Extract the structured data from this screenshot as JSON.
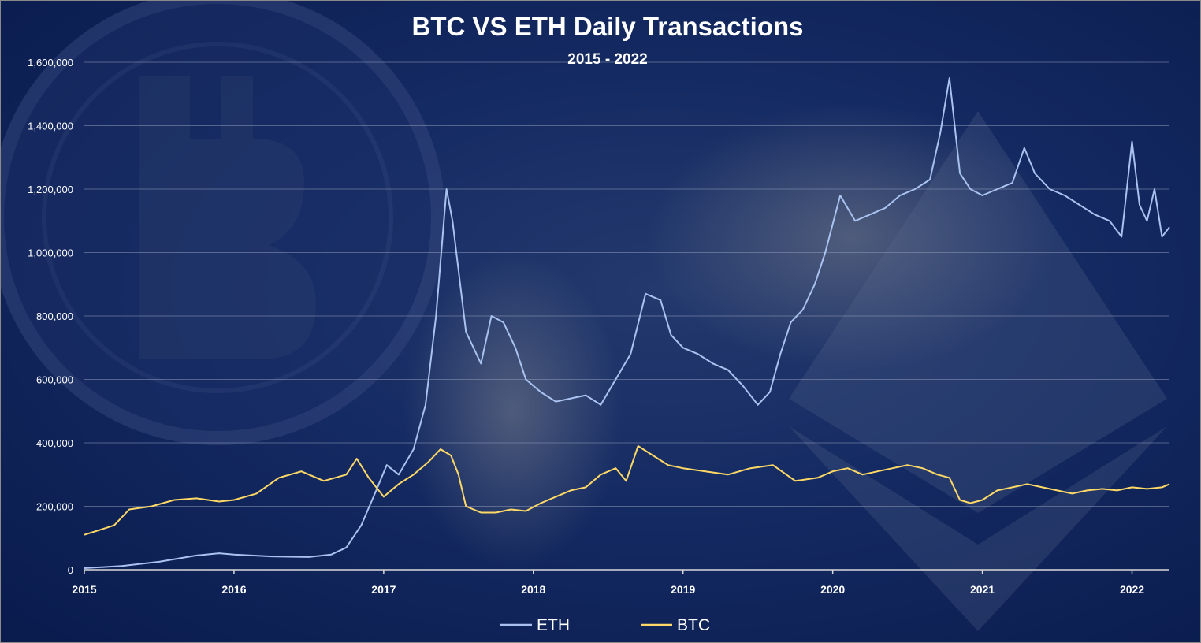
{
  "chart_data": {
    "type": "line",
    "title": "BTC VS ETH Daily Transactions",
    "subtitle": "2015 - 2022",
    "xlabel": "",
    "ylabel": "",
    "x_ticks": [
      "2015",
      "2016",
      "2017",
      "2018",
      "2019",
      "2020",
      "2021",
      "2022"
    ],
    "y_ticks": [
      "0",
      "200,000",
      "400,000",
      "600,000",
      "800,000",
      "1,000,000",
      "1,200,000",
      "1,400,000",
      "1,600,000"
    ],
    "xlim": [
      2015.0,
      2022.25
    ],
    "ylim": [
      0,
      1600000
    ],
    "grid": true,
    "legend": "bottom",
    "series": [
      {
        "name": "ETH",
        "color": "#a9c2ef",
        "x": [
          2015.0,
          2015.25,
          2015.5,
          2015.75,
          2015.9,
          2016.0,
          2016.25,
          2016.5,
          2016.65,
          2016.75,
          2016.85,
          2016.95,
          2017.02,
          2017.1,
          2017.2,
          2017.28,
          2017.35,
          2017.42,
          2017.46,
          2017.55,
          2017.65,
          2017.72,
          2017.8,
          2017.88,
          2017.95,
          2018.05,
          2018.15,
          2018.25,
          2018.35,
          2018.45,
          2018.55,
          2018.65,
          2018.75,
          2018.85,
          2018.92,
          2019.0,
          2019.1,
          2019.2,
          2019.3,
          2019.4,
          2019.5,
          2019.58,
          2019.65,
          2019.72,
          2019.8,
          2019.88,
          2019.95,
          2020.05,
          2020.15,
          2020.25,
          2020.35,
          2020.45,
          2020.55,
          2020.65,
          2020.72,
          2020.78,
          2020.85,
          2020.92,
          2021.0,
          2021.1,
          2021.2,
          2021.28,
          2021.35,
          2021.45,
          2021.55,
          2021.65,
          2021.75,
          2021.85,
          2021.93,
          2022.0,
          2022.05,
          2022.1,
          2022.15,
          2022.2,
          2022.25
        ],
        "y": [
          5000,
          12000,
          25000,
          45000,
          52000,
          48000,
          42000,
          40000,
          48000,
          70000,
          140000,
          250000,
          330000,
          300000,
          380000,
          520000,
          800000,
          1200000,
          1100000,
          750000,
          650000,
          800000,
          780000,
          700000,
          600000,
          560000,
          530000,
          540000,
          550000,
          520000,
          600000,
          680000,
          870000,
          850000,
          740000,
          700000,
          680000,
          650000,
          630000,
          580000,
          520000,
          560000,
          680000,
          780000,
          820000,
          900000,
          1000000,
          1180000,
          1100000,
          1120000,
          1140000,
          1180000,
          1200000,
          1230000,
          1380000,
          1550000,
          1250000,
          1200000,
          1180000,
          1200000,
          1220000,
          1330000,
          1250000,
          1200000,
          1180000,
          1150000,
          1120000,
          1100000,
          1050000,
          1350000,
          1150000,
          1100000,
          1200000,
          1050000,
          1080000
        ]
      },
      {
        "name": "BTC",
        "color": "#ffd966",
        "x": [
          2015.0,
          2015.1,
          2015.2,
          2015.3,
          2015.45,
          2015.6,
          2015.75,
          2015.9,
          2016.0,
          2016.15,
          2016.3,
          2016.45,
          2016.6,
          2016.75,
          2016.82,
          2016.9,
          2017.0,
          2017.1,
          2017.2,
          2017.3,
          2017.38,
          2017.45,
          2017.5,
          2017.55,
          2017.65,
          2017.75,
          2017.85,
          2017.95,
          2018.05,
          2018.15,
          2018.25,
          2018.35,
          2018.45,
          2018.55,
          2018.62,
          2018.7,
          2018.8,
          2018.9,
          2019.0,
          2019.15,
          2019.3,
          2019.45,
          2019.6,
          2019.75,
          2019.9,
          2020.0,
          2020.1,
          2020.2,
          2020.3,
          2020.4,
          2020.5,
          2020.6,
          2020.7,
          2020.78,
          2020.85,
          2020.92,
          2021.0,
          2021.1,
          2021.2,
          2021.3,
          2021.4,
          2021.5,
          2021.6,
          2021.7,
          2021.8,
          2021.9,
          2022.0,
          2022.1,
          2022.2,
          2022.25
        ],
        "y": [
          110000,
          125000,
          140000,
          190000,
          200000,
          220000,
          225000,
          215000,
          220000,
          240000,
          290000,
          310000,
          280000,
          300000,
          350000,
          290000,
          230000,
          270000,
          300000,
          340000,
          380000,
          360000,
          300000,
          200000,
          180000,
          180000,
          190000,
          185000,
          210000,
          230000,
          250000,
          260000,
          300000,
          320000,
          280000,
          390000,
          360000,
          330000,
          320000,
          310000,
          300000,
          320000,
          330000,
          280000,
          290000,
          310000,
          320000,
          300000,
          310000,
          320000,
          330000,
          320000,
          300000,
          290000,
          220000,
          210000,
          220000,
          250000,
          260000,
          270000,
          260000,
          250000,
          240000,
          250000,
          255000,
          250000,
          260000,
          255000,
          260000,
          270000
        ]
      }
    ]
  }
}
